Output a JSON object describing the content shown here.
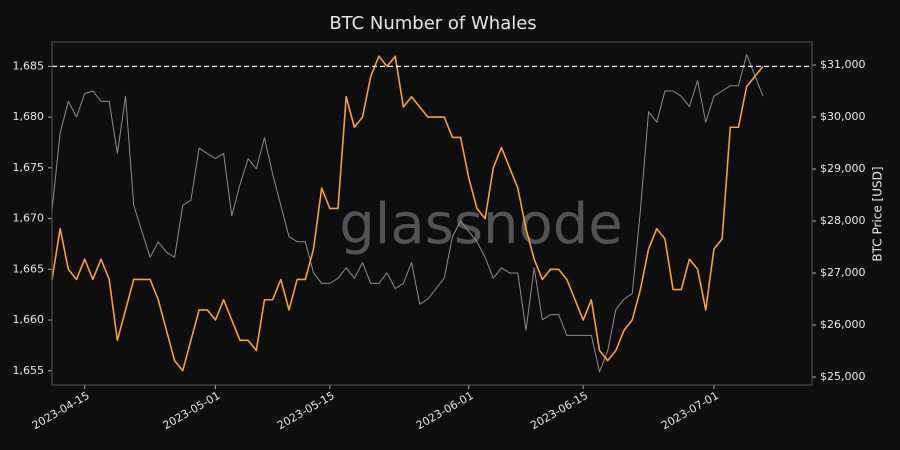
{
  "chart_data": {
    "type": "line",
    "title": "BTC Number of Whales",
    "y2label": "BTC Price [USD]",
    "watermark": "glassnode",
    "x": [
      "2023-04-11",
      "2023-04-12",
      "2023-04-13",
      "2023-04-14",
      "2023-04-15",
      "2023-04-16",
      "2023-04-17",
      "2023-04-18",
      "2023-04-19",
      "2023-04-20",
      "2023-04-21",
      "2023-04-22",
      "2023-04-23",
      "2023-04-24",
      "2023-04-25",
      "2023-04-26",
      "2023-04-27",
      "2023-04-28",
      "2023-04-29",
      "2023-04-30",
      "2023-05-01",
      "2023-05-02",
      "2023-05-03",
      "2023-05-04",
      "2023-05-05",
      "2023-05-06",
      "2023-05-07",
      "2023-05-08",
      "2023-05-09",
      "2023-05-10",
      "2023-05-11",
      "2023-05-12",
      "2023-05-13",
      "2023-05-14",
      "2023-05-15",
      "2023-05-16",
      "2023-05-17",
      "2023-05-18",
      "2023-05-19",
      "2023-05-20",
      "2023-05-21",
      "2023-05-22",
      "2023-05-23",
      "2023-05-24",
      "2023-05-25",
      "2023-05-26",
      "2023-05-27",
      "2023-05-28",
      "2023-05-29",
      "2023-05-30",
      "2023-05-31",
      "2023-06-01",
      "2023-06-02",
      "2023-06-03",
      "2023-06-04",
      "2023-06-05",
      "2023-06-06",
      "2023-06-07",
      "2023-06-08",
      "2023-06-09",
      "2023-06-10",
      "2023-06-11",
      "2023-06-12",
      "2023-06-13",
      "2023-06-14",
      "2023-06-15",
      "2023-06-16",
      "2023-06-17",
      "2023-06-18",
      "2023-06-19",
      "2023-06-20",
      "2023-06-21",
      "2023-06-22",
      "2023-06-23",
      "2023-06-24",
      "2023-06-25",
      "2023-06-26",
      "2023-06-27",
      "2023-06-28",
      "2023-06-29",
      "2023-06-30",
      "2023-07-01",
      "2023-07-02",
      "2023-07-03",
      "2023-07-04",
      "2023-07-05",
      "2023-07-06",
      "2023-07-07"
    ],
    "series": [
      {
        "color": "#8c8c8c",
        "axis": "y2",
        "values": [
          28200,
          29700,
          30300,
          30000,
          30450,
          30500,
          30300,
          30300,
          29300,
          30400,
          28300,
          27800,
          27300,
          27600,
          27400,
          27300,
          28300,
          28400,
          29400,
          29300,
          29200,
          29300,
          28100,
          28700,
          29200,
          29000,
          29600,
          28900,
          28300,
          27700,
          27600,
          27600,
          27000,
          26800,
          26800,
          26900,
          27100,
          26900,
          27200,
          26800,
          26800,
          27000,
          26700,
          26800,
          27200,
          26400,
          26500,
          26700,
          26900,
          27700,
          28000,
          27800,
          27600,
          27300,
          26900,
          27100,
          27000,
          27000,
          25900,
          27100,
          26100,
          26200,
          26200,
          25800,
          25800,
          25800,
          25800,
          25100,
          25500,
          26300,
          26500,
          26600,
          28200,
          30100,
          29900,
          30500,
          30500,
          30400,
          30200,
          30700,
          29900,
          30400,
          30500,
          30600,
          30600,
          31200,
          30800,
          30400
        ]
      },
      {
        "color": "#f7a035",
        "values": [
          1664,
          1669,
          1665,
          1664,
          1666,
          1664,
          1666,
          1664,
          1658,
          1661,
          1664,
          1664,
          1664,
          1662,
          1659,
          1656,
          1655,
          1658,
          1661,
          1661,
          1660,
          1662,
          1660,
          1658,
          1658,
          1657,
          1662,
          1662,
          1664,
          1661,
          1664,
          1664,
          1667,
          1673,
          1671,
          1671,
          1682,
          1679,
          1680,
          1684,
          1686,
          1685,
          1686,
          1681,
          1682,
          1681,
          1680,
          1680,
          1680,
          1678,
          1678,
          1674,
          1671,
          1670,
          1675,
          1677,
          1675,
          1673,
          1669,
          1666,
          1664,
          1665,
          1665,
          1664,
          1662,
          1660,
          1662,
          1657,
          1656,
          1657,
          1659,
          1660,
          1663,
          1667,
          1669,
          1668,
          1663,
          1663,
          1666,
          1665,
          1661,
          1667,
          1668,
          1679,
          1679,
          1683,
          1684,
          1685
        ]
      }
    ],
    "hline": 1685,
    "xlim": [
      "2023-04-11",
      "2023-07-13"
    ],
    "xticks": [
      "2023-04-15",
      "2023-05-01",
      "2023-05-15",
      "2023-06-01",
      "2023-06-15",
      "2023-07-01"
    ],
    "ylim": [
      1653.6,
      1687.4
    ],
    "yticks": [
      {
        "value": 1655,
        "label": "1,655"
      },
      {
        "value": 1660,
        "label": "1,660"
      },
      {
        "value": 1665,
        "label": "1,665"
      },
      {
        "value": 1670,
        "label": "1,670"
      },
      {
        "value": 1675,
        "label": "1,675"
      },
      {
        "value": 1680,
        "label": "1,680"
      },
      {
        "value": 1685,
        "label": "1,685"
      }
    ],
    "y2lim": [
      24846,
      31442
    ],
    "y2ticks": [
      {
        "value": 25000,
        "label": "$25,000"
      },
      {
        "value": 26000,
        "label": "$26,000"
      },
      {
        "value": 27000,
        "label": "$27,000"
      },
      {
        "value": 28000,
        "label": "$28,000"
      },
      {
        "value": 29000,
        "label": "$29,000"
      },
      {
        "value": 30000,
        "label": "$30,000"
      },
      {
        "value": 31000,
        "label": "$31,000"
      }
    ]
  }
}
